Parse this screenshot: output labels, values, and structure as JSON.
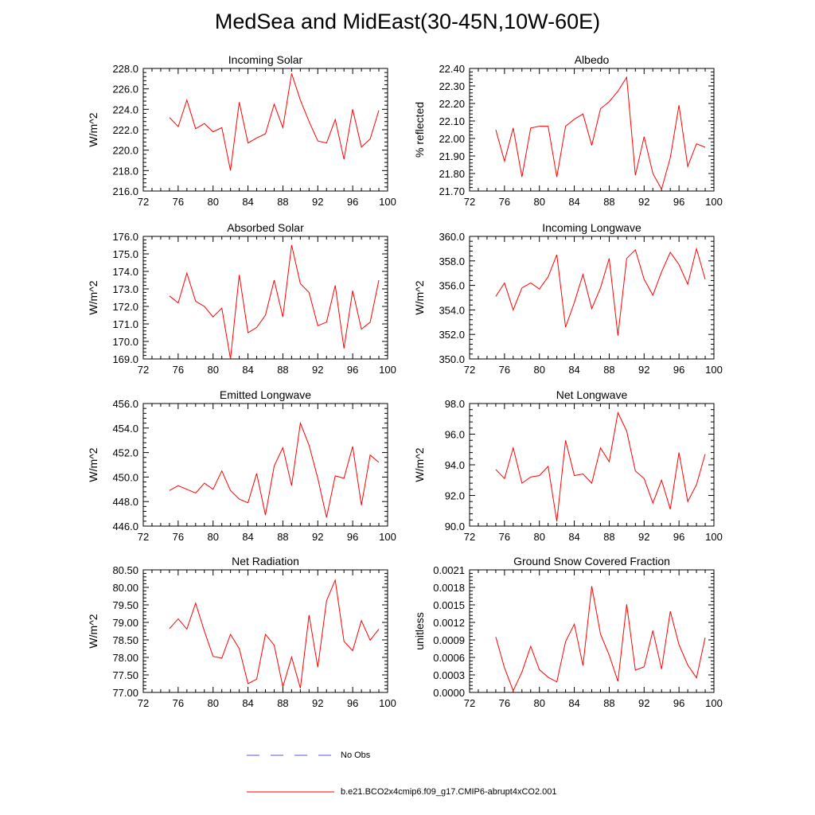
{
  "figure": {
    "title": "MedSea and MidEast(30-45N,10W-60E)"
  },
  "colors": {
    "model_line": "#ff0000",
    "obs_line": "#5a5ad2",
    "axis": "#000000",
    "background": "#ffffff"
  },
  "legend": {
    "obs_label": "No Obs",
    "model_label": "b.e21.BCO2x4cmip6.f09_g17.CMIP6-abrupt4xCO2.001"
  },
  "chart_data": [
    {
      "type": "line",
      "title": "Incoming Solar",
      "ylabel": "W/m^2",
      "xlabel": "",
      "xlim": [
        72,
        100
      ],
      "ylim": [
        216.0,
        228.0
      ],
      "x_ticks": [
        "72",
        "76",
        "80",
        "84",
        "88",
        "92",
        "96",
        "100"
      ],
      "y_ticks": [
        "216.0",
        "218.0",
        "220.0",
        "222.0",
        "224.0",
        "226.0",
        "228.0"
      ],
      "x": [
        75,
        76,
        77,
        78,
        79,
        80,
        81,
        82,
        83,
        84,
        85,
        86,
        87,
        88,
        89,
        90,
        91,
        92,
        93,
        94,
        95,
        96,
        97,
        98,
        99
      ],
      "series": [
        {
          "name": "b.e21.BCO2x4cmip6.f09_g17.CMIP6-abrupt4xCO2.001",
          "values": [
            223.2,
            222.3,
            224.9,
            222.1,
            222.6,
            221.8,
            222.2,
            218.0,
            224.7,
            220.7,
            221.2,
            221.6,
            224.5,
            222.2,
            227.5,
            224.9,
            222.8,
            220.9,
            220.7,
            223.0,
            219.1,
            224.0,
            220.3,
            221.1,
            223.9
          ]
        }
      ]
    },
    {
      "type": "line",
      "title": "Albedo",
      "ylabel": "% reflected",
      "xlabel": "",
      "xlim": [
        72,
        100
      ],
      "ylim": [
        21.7,
        22.4
      ],
      "x_ticks": [
        "72",
        "76",
        "80",
        "84",
        "88",
        "92",
        "96",
        "100"
      ],
      "y_ticks": [
        "21.70",
        "21.80",
        "21.90",
        "22.00",
        "22.10",
        "22.20",
        "22.30",
        "22.40"
      ],
      "x": [
        75,
        76,
        77,
        78,
        79,
        80,
        81,
        82,
        83,
        84,
        85,
        86,
        87,
        88,
        89,
        90,
        91,
        92,
        93,
        94,
        95,
        96,
        97,
        98,
        99
      ],
      "series": [
        {
          "name": "b.e21.BCO2x4cmip6.f09_g17.CMIP6-abrupt4xCO2.001",
          "values": [
            22.05,
            21.87,
            22.06,
            21.78,
            22.06,
            22.07,
            22.07,
            21.78,
            22.07,
            22.11,
            22.14,
            21.96,
            22.17,
            22.21,
            22.27,
            22.35,
            21.79,
            22.01,
            21.8,
            21.71,
            21.89,
            22.19,
            21.84,
            21.97,
            21.95
          ]
        }
      ]
    },
    {
      "type": "line",
      "title": "Absorbed Solar",
      "ylabel": "W/m^2",
      "xlabel": "",
      "xlim": [
        72,
        100
      ],
      "ylim": [
        169.0,
        176.0
      ],
      "x_ticks": [
        "72",
        "76",
        "80",
        "84",
        "88",
        "92",
        "96",
        "100"
      ],
      "y_ticks": [
        "169.0",
        "170.0",
        "171.0",
        "172.0",
        "173.0",
        "174.0",
        "175.0",
        "176.0"
      ],
      "x": [
        75,
        76,
        77,
        78,
        79,
        80,
        81,
        82,
        83,
        84,
        85,
        86,
        87,
        88,
        89,
        90,
        91,
        92,
        93,
        94,
        95,
        96,
        97,
        98,
        99
      ],
      "series": [
        {
          "name": "b.e21.BCO2x4cmip6.f09_g17.CMIP6-abrupt4xCO2.001",
          "values": [
            172.6,
            172.2,
            173.9,
            172.3,
            172.0,
            171.4,
            171.9,
            169.0,
            173.8,
            170.5,
            170.8,
            171.5,
            173.5,
            171.4,
            175.5,
            173.3,
            172.8,
            170.9,
            171.1,
            173.2,
            169.6,
            172.9,
            170.7,
            171.1,
            173.5
          ]
        }
      ]
    },
    {
      "type": "line",
      "title": "Incoming Longwave",
      "ylabel": "W/m^2",
      "xlabel": "",
      "xlim": [
        72,
        100
      ],
      "ylim": [
        350.0,
        360.0
      ],
      "x_ticks": [
        "72",
        "76",
        "80",
        "84",
        "88",
        "92",
        "96",
        "100"
      ],
      "y_ticks": [
        "350.0",
        "352.0",
        "354.0",
        "356.0",
        "358.0",
        "360.0"
      ],
      "x": [
        75,
        76,
        77,
        78,
        79,
        80,
        81,
        82,
        83,
        84,
        85,
        86,
        87,
        88,
        89,
        90,
        91,
        92,
        93,
        94,
        95,
        96,
        97,
        98,
        99
      ],
      "series": [
        {
          "name": "b.e21.BCO2x4cmip6.f09_g17.CMIP6-abrupt4xCO2.001",
          "values": [
            355.1,
            356.2,
            354.0,
            355.8,
            356.2,
            355.7,
            356.7,
            358.5,
            352.6,
            354.6,
            356.9,
            354.1,
            355.8,
            358.2,
            351.9,
            358.2,
            358.9,
            356.5,
            355.2,
            357.1,
            358.7,
            357.7,
            356.1,
            359.0,
            356.5
          ]
        }
      ]
    },
    {
      "type": "line",
      "title": "Emitted Longwave",
      "ylabel": "W/m^2",
      "xlabel": "",
      "xlim": [
        72,
        100
      ],
      "ylim": [
        446.0,
        456.0
      ],
      "x_ticks": [
        "72",
        "76",
        "80",
        "84",
        "88",
        "92",
        "96",
        "100"
      ],
      "y_ticks": [
        "446.0",
        "448.0",
        "450.0",
        "452.0",
        "454.0",
        "456.0"
      ],
      "x": [
        75,
        76,
        77,
        78,
        79,
        80,
        81,
        82,
        83,
        84,
        85,
        86,
        87,
        88,
        89,
        90,
        91,
        92,
        93,
        94,
        95,
        96,
        97,
        98,
        99
      ],
      "series": [
        {
          "name": "b.e21.BCO2x4cmip6.f09_g17.CMIP6-abrupt4xCO2.001",
          "values": [
            448.9,
            449.3,
            449.0,
            448.7,
            449.5,
            449.0,
            450.5,
            448.9,
            448.2,
            447.9,
            450.3,
            446.9,
            450.9,
            452.4,
            449.3,
            454.4,
            452.6,
            449.9,
            446.7,
            450.1,
            449.9,
            452.5,
            447.7,
            451.8,
            451.2
          ]
        }
      ]
    },
    {
      "type": "line",
      "title": "Net Longwave",
      "ylabel": "W/m^2",
      "xlabel": "",
      "xlim": [
        72,
        100
      ],
      "ylim": [
        90.0,
        98.0
      ],
      "x_ticks": [
        "72",
        "76",
        "80",
        "84",
        "88",
        "92",
        "96",
        "100"
      ],
      "y_ticks": [
        "90.0",
        "92.0",
        "94.0",
        "96.0",
        "98.0"
      ],
      "x": [
        75,
        76,
        77,
        78,
        79,
        80,
        81,
        82,
        83,
        84,
        85,
        86,
        87,
        88,
        89,
        90,
        91,
        92,
        93,
        94,
        95,
        96,
        97,
        98,
        99
      ],
      "series": [
        {
          "name": "b.e21.BCO2x4cmip6.f09_g17.CMIP6-abrupt4xCO2.001",
          "values": [
            93.7,
            93.1,
            95.1,
            92.8,
            93.2,
            93.3,
            93.9,
            90.3,
            95.6,
            93.3,
            93.4,
            92.8,
            95.1,
            94.2,
            97.4,
            96.2,
            93.6,
            93.1,
            91.5,
            93.0,
            91.1,
            94.8,
            91.6,
            92.7,
            94.7
          ]
        }
      ]
    },
    {
      "type": "line",
      "title": "Net Radiation",
      "ylabel": "W/m^2",
      "xlabel": "",
      "xlim": [
        72,
        100
      ],
      "ylim": [
        77.0,
        80.5
      ],
      "x_ticks": [
        "72",
        "76",
        "80",
        "84",
        "88",
        "92",
        "96",
        "100"
      ],
      "y_ticks": [
        "77.00",
        "77.50",
        "78.00",
        "78.50",
        "79.00",
        "79.50",
        "80.00",
        "80.50"
      ],
      "x": [
        75,
        76,
        77,
        78,
        79,
        80,
        81,
        82,
        83,
        84,
        85,
        86,
        87,
        88,
        89,
        90,
        91,
        92,
        93,
        94,
        95,
        96,
        97,
        98,
        99
      ],
      "series": [
        {
          "name": "b.e21.BCO2x4cmip6.f09_g17.CMIP6-abrupt4xCO2.001",
          "values": [
            78.82,
            79.1,
            78.81,
            79.55,
            78.75,
            78.03,
            77.98,
            78.66,
            78.25,
            77.25,
            77.38,
            78.66,
            78.35,
            77.16,
            78.01,
            77.12,
            79.21,
            77.72,
            79.62,
            80.21,
            78.46,
            78.19,
            79.05,
            78.49,
            78.81
          ]
        }
      ]
    },
    {
      "type": "line",
      "title": "Ground Snow Covered Fraction",
      "ylabel": "unitless",
      "xlabel": "",
      "xlim": [
        72,
        100
      ],
      "ylim": [
        0.0,
        0.0021
      ],
      "x_ticks": [
        "72",
        "76",
        "80",
        "84",
        "88",
        "92",
        "96",
        "100"
      ],
      "y_ticks": [
        "0.0000",
        "0.0003",
        "0.0006",
        "0.0009",
        "0.0012",
        "0.0015",
        "0.0018",
        "0.0021"
      ],
      "x": [
        75,
        76,
        77,
        78,
        79,
        80,
        81,
        82,
        83,
        84,
        85,
        86,
        87,
        88,
        89,
        90,
        91,
        92,
        93,
        94,
        95,
        96,
        97,
        98,
        99
      ],
      "series": [
        {
          "name": "b.e21.BCO2x4cmip6.f09_g17.CMIP6-abrupt4xCO2.001",
          "values": [
            0.00095,
            0.00042,
            3e-05,
            0.00035,
            0.00079,
            0.00039,
            0.00026,
            0.00018,
            0.00087,
            0.00117,
            0.00046,
            0.00182,
            0.001,
            0.00064,
            0.00019,
            0.00151,
            0.00038,
            0.00044,
            0.00106,
            0.0004,
            0.00139,
            0.00082,
            0.00047,
            0.00025,
            0.00094
          ]
        }
      ]
    }
  ]
}
